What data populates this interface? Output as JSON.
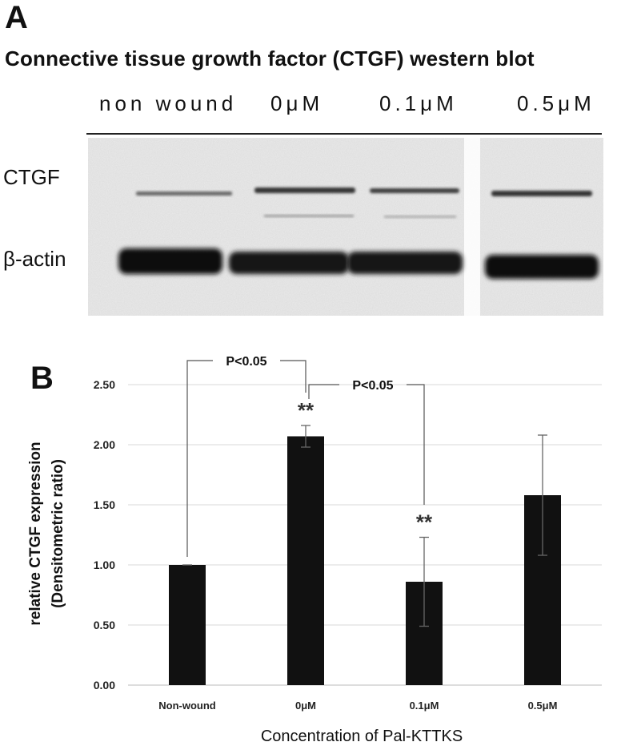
{
  "panel_a": {
    "label": "A",
    "title": "Connective tissue growth factor (CTGF)  western blot",
    "lanes": [
      "non  wound",
      "0μM",
      "0.1μM",
      "0.5μM"
    ],
    "rows": [
      "CTGF",
      "β-actin"
    ]
  },
  "panel_b": {
    "label": "B"
  },
  "chart_data": {
    "type": "bar",
    "categories": [
      "Non-wound",
      "0μM",
      "0.1μM",
      "0.5μM"
    ],
    "values": [
      1.0,
      2.07,
      0.86,
      1.58
    ],
    "error": [
      0.0,
      0.09,
      0.37,
      0.5
    ],
    "ylim": [
      0,
      2.5
    ],
    "yticks": [
      "0.00",
      "0.50",
      "1.00",
      "1.50",
      "2.00",
      "2.50"
    ],
    "ytick_values": [
      0,
      0.5,
      1.0,
      1.5,
      2.0,
      2.5
    ],
    "ylabel_line1": "relative CTGF expression",
    "ylabel_line2": "(Densitometric ratio)",
    "xlabel": "Concentration of Pal-KTTKS",
    "grid": true,
    "bar_color": "#111111",
    "significance_markers": [
      "",
      "**",
      "**",
      ""
    ],
    "brackets": [
      {
        "from": "Non-wound",
        "to": "0μM",
        "label": "P<0.05"
      },
      {
        "from": "0μM",
        "to": "0.1μM",
        "label": "P<0.05"
      }
    ]
  }
}
